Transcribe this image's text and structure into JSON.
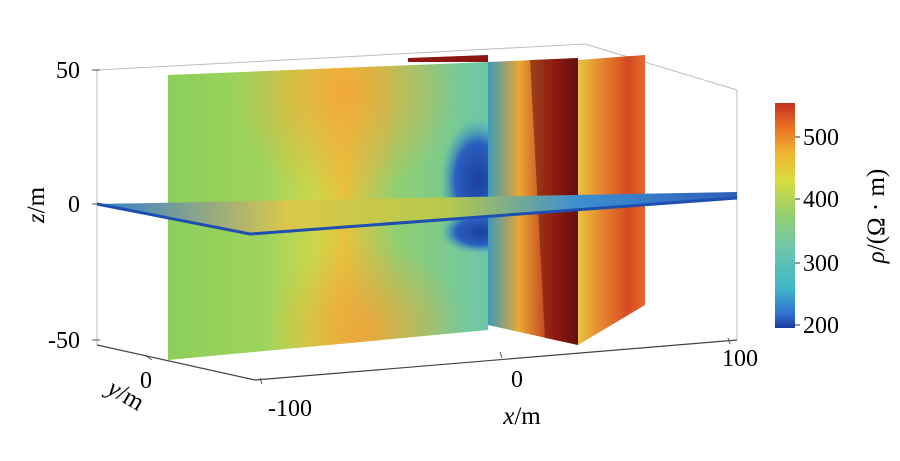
{
  "chart_data": {
    "type": "3d-slice-volume",
    "quantity": "resistivity",
    "axes": {
      "x": {
        "label_var": "x",
        "label_unit": "/m",
        "ticks": [
          "-100",
          "0",
          "100"
        ],
        "range": [
          -100,
          100
        ]
      },
      "y": {
        "label_var": "y",
        "label_unit": "/m",
        "ticks": [
          "0"
        ]
      },
      "z": {
        "label_var": "z",
        "label_unit": "/m",
        "ticks": [
          "50",
          "0",
          "-50"
        ],
        "range": [
          -50,
          50
        ]
      }
    },
    "colorbar": {
      "label_var": "ρ",
      "label_unit": "/(Ω · m)",
      "ticks": [
        "500",
        "400",
        "300",
        "200"
      ],
      "range": [
        190,
        560
      ],
      "colors": [
        "#1a3a9c",
        "#2f6fd0",
        "#3fb8c8",
        "#6ec7a8",
        "#9bd06a",
        "#d9dc3c",
        "#f2b231",
        "#e76d23",
        "#c42f1f"
      ]
    },
    "slices": [
      {
        "orientation": "xz",
        "at": "y = 0"
      },
      {
        "orientation": "yz",
        "at": "x ≈ 20"
      },
      {
        "orientation": "xy",
        "at": "z = 0"
      }
    ],
    "features": [
      {
        "type": "low-resistivity anomaly",
        "rho_approx": 200,
        "x_approx": [
          -10,
          10
        ],
        "z_approx": [
          -10,
          20
        ]
      },
      {
        "type": "high-resistivity zone",
        "rho_approx": 550,
        "x_approx": [
          15,
          40
        ],
        "z_approx": [
          -50,
          50
        ]
      }
    ]
  }
}
